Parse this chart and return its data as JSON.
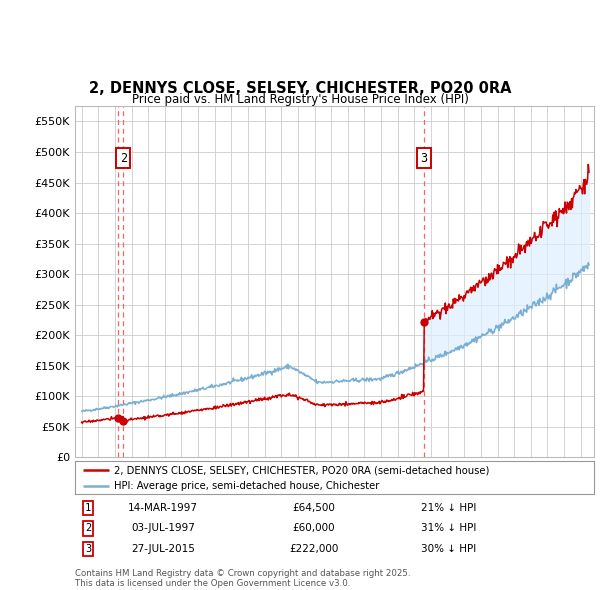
{
  "title": "2, DENNYS CLOSE, SELSEY, CHICHESTER, PO20 0RA",
  "subtitle": "Price paid vs. HM Land Registry's House Price Index (HPI)",
  "property_label": "2, DENNYS CLOSE, SELSEY, CHICHESTER, PO20 0RA (semi-detached house)",
  "hpi_label": "HPI: Average price, semi-detached house, Chichester",
  "transactions": [
    {
      "num": 1,
      "date": "14-MAR-1997",
      "price": 64500,
      "rel": "21% ↓ HPI",
      "year": 1997.19
    },
    {
      "num": 2,
      "date": "03-JUL-1997",
      "price": 60000,
      "rel": "31% ↓ HPI",
      "year": 1997.5
    },
    {
      "num": 3,
      "date": "27-JUL-2015",
      "price": 222000,
      "rel": "30% ↓ HPI",
      "year": 2015.57
    }
  ],
  "property_color": "#cc0000",
  "hpi_color": "#7aafd4",
  "fill_color": "#ddeeff",
  "vline_color": "#ee6666",
  "marker_color": "#cc0000",
  "background_color": "#ffffff",
  "grid_color": "#cccccc",
  "ylim": [
    0,
    575000
  ],
  "yticks": [
    0,
    50000,
    100000,
    150000,
    200000,
    250000,
    300000,
    350000,
    400000,
    450000,
    500000,
    550000
  ],
  "xlim_start": 1994.6,
  "xlim_end": 2025.8,
  "footer": "Contains HM Land Registry data © Crown copyright and database right 2025.\nThis data is licensed under the Open Government Licence v3.0."
}
